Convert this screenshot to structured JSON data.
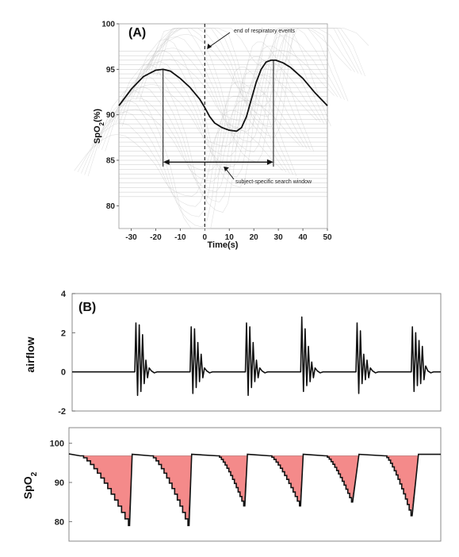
{
  "colors": {
    "fill": "#f48a8a",
    "line": "#111111",
    "grid": "#9a9a9a",
    "frame": "#888888"
  },
  "chart_data": [
    {
      "type": "line",
      "panel_label": "(A)",
      "xlabel": "Time(s)",
      "ylabel_main": "SpO",
      "ylabel_sub": "2",
      "ylabel_tail": "(%)",
      "xlim": [
        -35,
        50
      ],
      "ylim": [
        77.5,
        100
      ],
      "xticks": [
        -30,
        -20,
        -10,
        0,
        10,
        20,
        30,
        40,
        50
      ],
      "yticks": [
        80,
        85,
        90,
        95,
        100
      ],
      "series": [
        {
          "x": [
            -35,
            -30,
            -25,
            -20,
            -17,
            -14,
            -10,
            -6,
            -2,
            0,
            2,
            4,
            7,
            10,
            13,
            15,
            17,
            19,
            21,
            23,
            25,
            27,
            29,
            32,
            35,
            40,
            45,
            50
          ],
          "y": [
            91,
            92.8,
            94.2,
            94.9,
            95,
            94.8,
            94,
            93,
            91.7,
            90.8,
            89.8,
            89.1,
            88.6,
            88.3,
            88.2,
            88.6,
            89.8,
            91.7,
            93.6,
            95.0,
            95.8,
            96.0,
            96.0,
            95.7,
            95.2,
            94.0,
            92.4,
            91
          ]
        }
      ],
      "vline_x": 0,
      "window": [
        -17,
        28
      ],
      "annotations": [
        {
          "text": "end of respiratory events",
          "x": 2.5,
          "y": 98.8
        },
        {
          "text": "subject-specific search window",
          "x": 11,
          "y": 83.7
        }
      ]
    },
    {
      "type": "line",
      "panel_label": "(B)",
      "ylabel": "airflow",
      "ylim": [
        -2,
        4
      ],
      "yticks": [
        -2,
        0,
        2,
        4
      ],
      "xlim": [
        0,
        100
      ],
      "bursts": [
        {
          "x": 18.5,
          "amps": [
            2.5,
            -1.2,
            2.4,
            -1.0,
            1.9,
            -0.6,
            0.6,
            -0.3,
            0.2
          ]
        },
        {
          "x": 33.5,
          "amps": [
            2.3,
            -1.1,
            2.2,
            -0.8,
            1.5,
            -0.5,
            0.9,
            -0.3,
            0.2
          ]
        },
        {
          "x": 48.5,
          "amps": [
            2.5,
            -1.2,
            2.3,
            -0.8,
            1.5,
            -0.5,
            0.6,
            -0.3,
            0.2
          ]
        },
        {
          "x": 63.5,
          "amps": [
            2.8,
            -1.0,
            2.2,
            -0.7,
            1.3,
            -0.5,
            0.5,
            -0.3,
            0.2
          ]
        },
        {
          "x": 78.5,
          "amps": [
            2.5,
            -1.1,
            2.1,
            -0.6,
            0.9,
            -0.4,
            0.6,
            -0.3,
            0.2
          ]
        },
        {
          "x": 93.5,
          "amps": [
            2.3,
            -1.0,
            2.0,
            -0.7,
            1.6,
            -0.6,
            1.3,
            -0.4,
            0.3
          ]
        }
      ]
    },
    {
      "type": "area",
      "ylabel_main": "SpO",
      "ylabel_sub": "2",
      "ylim": [
        75,
        104
      ],
      "yticks": [
        80,
        90,
        100
      ],
      "xlim": [
        0,
        100
      ],
      "baseline": 96.8,
      "events": [
        {
          "start": 3,
          "min_x": 16,
          "min": 79,
          "end": 17
        },
        {
          "start": 22,
          "min_x": 32,
          "min": 79,
          "end": 33
        },
        {
          "start": 40,
          "min_x": 47,
          "min": 84,
          "end": 48
        },
        {
          "start": 54,
          "min_x": 62,
          "min": 84,
          "end": 63
        },
        {
          "start": 69,
          "min_x": 76,
          "min": 85,
          "end": 78
        },
        {
          "start": 85,
          "min_x": 92,
          "min": 81.5,
          "end": 94
        }
      ]
    }
  ]
}
